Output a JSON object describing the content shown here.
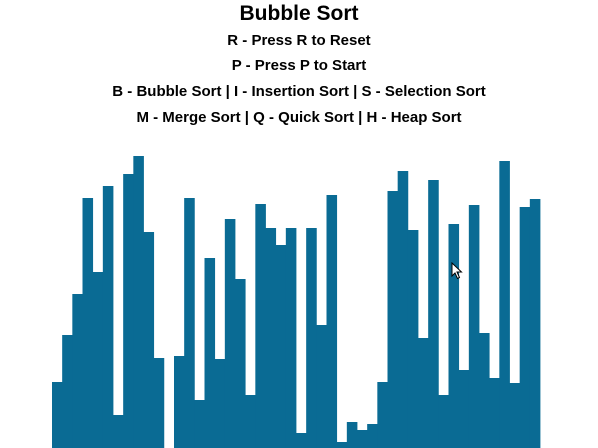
{
  "window": {
    "title": "Bubble Sort"
  },
  "instructions": [
    "R - Press R to Reset",
    "P - Press P to Start",
    "B - Bubble Sort | I - Insertion Sort | S - Selection Sort",
    "M - Merge Sort | Q - Quick Sort | H - Heap Sort"
  ],
  "bar_color": "#0a6b94",
  "background_color": "#ffffff",
  "bars": {
    "max_value": 292,
    "values": [
      66,
      113,
      154,
      250,
      176,
      262,
      33,
      274,
      292,
      216,
      90,
      0,
      92,
      250,
      48,
      190,
      89,
      229,
      169,
      53,
      244,
      220,
      203,
      220,
      15,
      220,
      123,
      253,
      6,
      26,
      18,
      24,
      66,
      257,
      277,
      218,
      110,
      268,
      53,
      224,
      78,
      243,
      115,
      70,
      287,
      65,
      241,
      249
    ]
  }
}
